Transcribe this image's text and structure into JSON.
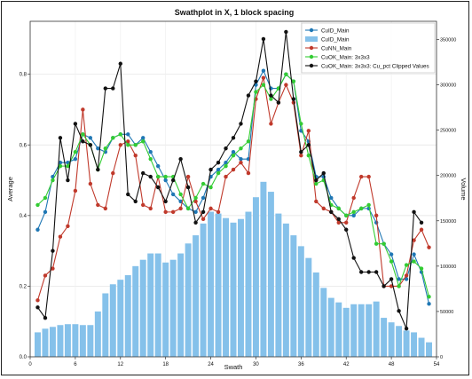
{
  "chart_data": {
    "type": "bar+line",
    "title": "Swathplot in X, 1 block spacing",
    "xlabel": "Swath",
    "ylabel_left": "Average",
    "ylabel_right": "Volume",
    "xlim": [
      0,
      54
    ],
    "ylim_left": [
      0,
      0.95
    ],
    "ylim_right": [
      0,
      370000
    ],
    "xticks": [
      0,
      6,
      12,
      18,
      24,
      30,
      36,
      42,
      48,
      54
    ],
    "yticks_left": [
      0.0,
      0.2,
      0.4,
      0.6,
      0.8
    ],
    "yticks_right": [
      0,
      50000,
      100000,
      150000,
      200000,
      250000,
      300000,
      350000
    ],
    "grid": true,
    "legend_position": "top-right",
    "x": [
      1,
      2,
      3,
      4,
      5,
      6,
      7,
      8,
      9,
      10,
      11,
      12,
      13,
      14,
      15,
      16,
      17,
      18,
      19,
      20,
      21,
      22,
      23,
      24,
      25,
      26,
      27,
      28,
      29,
      30,
      31,
      32,
      33,
      34,
      35,
      36,
      37,
      38,
      39,
      40,
      41,
      42,
      43,
      44,
      45,
      46,
      47,
      48,
      49,
      50,
      51,
      52,
      53
    ],
    "bars": {
      "name": "CuID_Main",
      "color": "#85c1ea",
      "values": [
        27000,
        31000,
        33000,
        35000,
        36000,
        36000,
        35000,
        35000,
        50000,
        70000,
        80000,
        85000,
        90000,
        100000,
        107000,
        114000,
        114000,
        104000,
        107000,
        114000,
        125000,
        134000,
        147000,
        160000,
        158000,
        153000,
        148000,
        152000,
        160000,
        176000,
        193000,
        182000,
        158000,
        147000,
        134000,
        122000,
        109000,
        93000,
        76000,
        65000,
        60000,
        54000,
        58000,
        58000,
        58000,
        61000,
        43000,
        38000,
        34000,
        29000,
        27000,
        21000,
        16000
      ]
    },
    "series": [
      {
        "name": "CuID_Main",
        "color": "#1f77b4",
        "values": [
          0.36,
          0.41,
          0.51,
          0.55,
          0.55,
          0.56,
          0.63,
          0.62,
          0.59,
          0.58,
          0.62,
          0.63,
          0.63,
          0.6,
          0.62,
          0.58,
          0.54,
          0.5,
          0.46,
          0.44,
          0.42,
          0.41,
          0.45,
          0.51,
          0.53,
          0.55,
          0.58,
          0.56,
          0.56,
          0.77,
          0.81,
          0.76,
          0.76,
          0.8,
          0.78,
          0.64,
          0.61,
          0.51,
          0.51,
          0.45,
          0.42,
          0.4,
          0.4,
          0.42,
          0.42,
          0.38,
          0.32,
          0.29,
          0.22,
          0.22,
          0.29,
          0.24,
          0.15
        ]
      },
      {
        "name": "CuNN_Main",
        "color": "#c0392b",
        "values": [
          0.16,
          0.23,
          0.25,
          0.34,
          0.37,
          0.47,
          0.7,
          0.49,
          0.43,
          0.42,
          0.52,
          0.6,
          0.61,
          0.57,
          0.43,
          0.42,
          0.51,
          0.41,
          0.41,
          0.42,
          0.51,
          0.44,
          0.39,
          0.42,
          0.41,
          0.51,
          0.53,
          0.55,
          0.52,
          0.73,
          0.79,
          0.66,
          0.72,
          0.77,
          0.72,
          0.57,
          0.64,
          0.44,
          0.42,
          0.41,
          0.38,
          0.38,
          0.45,
          0.51,
          0.51,
          0.4,
          0.2,
          0.2,
          0.2,
          0.23,
          0.33,
          0.36,
          0.31
        ]
      },
      {
        "name": "CuOK_Main: 3x3x3",
        "color": "#33cc33",
        "values": [
          0.43,
          0.45,
          0.5,
          0.54,
          0.54,
          0.58,
          0.63,
          0.6,
          0.53,
          0.59,
          0.62,
          0.63,
          0.6,
          0.6,
          0.61,
          0.56,
          0.51,
          0.51,
          0.51,
          0.46,
          0.42,
          0.45,
          0.49,
          0.48,
          0.52,
          0.54,
          0.57,
          0.59,
          0.61,
          0.75,
          0.77,
          0.73,
          0.76,
          0.8,
          0.78,
          0.66,
          0.57,
          0.49,
          0.5,
          0.43,
          0.42,
          0.4,
          0.41,
          0.42,
          0.43,
          0.32,
          0.32,
          0.27,
          0.2,
          0.26,
          0.27,
          0.25,
          0.17
        ]
      },
      {
        "name": "CuOK_Main: 3x3x3: Cu_pct Clipped Values",
        "color": "#111111",
        "values": [
          0.14,
          0.11,
          0.3,
          0.62,
          0.5,
          0.66,
          0.61,
          0.6,
          0.53,
          0.76,
          0.76,
          0.83,
          0.46,
          0.44,
          0.52,
          0.51,
          0.48,
          0.44,
          0.5,
          0.56,
          0.48,
          0.38,
          0.41,
          0.53,
          0.55,
          0.59,
          0.62,
          0.66,
          0.74,
          0.78,
          0.9,
          0.74,
          0.72,
          0.92,
          0.73,
          0.58,
          0.6,
          0.5,
          0.52,
          0.41,
          0.39,
          0.36,
          0.28,
          0.24,
          0.24,
          0.24,
          0.2,
          0.22,
          0.13,
          0.08,
          0.41,
          0.38,
          null
        ]
      }
    ]
  }
}
